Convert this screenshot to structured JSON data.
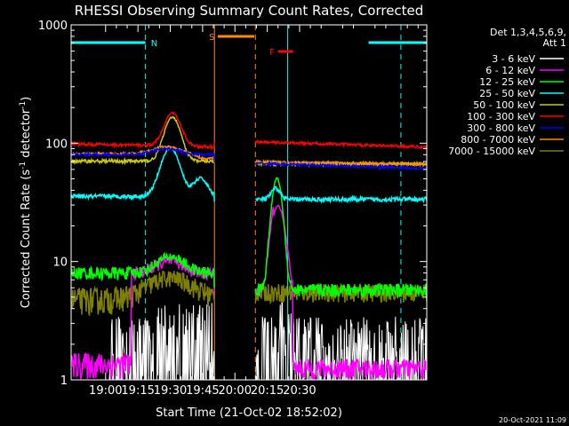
{
  "chart_data": {
    "type": "line",
    "title": "RHESSI Observing Summary Count Rates, Corrected",
    "xlabel": "Start Time (21-Oct-02 18:52:02)",
    "ylabel_main": "Corrected Count Rate (s",
    "ylabel_sup1": "-1",
    "ylabel_mid": " detector",
    "ylabel_sup2": "-1",
    "ylabel_end": ")",
    "ylim": [
      1,
      1000
    ],
    "y_scale": "log",
    "xlim_min": [
      -8,
      157
    ],
    "x_ticks": [
      {
        "label": "19:00",
        "min": 8
      },
      {
        "label": "19:15",
        "min": 23
      },
      {
        "label": "19:30",
        "min": 38
      },
      {
        "label": "19:45",
        "min": 53
      },
      {
        "label": "20:00",
        "min": 68
      },
      {
        "label": "20:15",
        "min": 83
      },
      {
        "label": "20:30",
        "min": 98
      }
    ],
    "y_ticks": [
      {
        "label": "1",
        "v": 1
      },
      {
        "label": "10",
        "v": 10
      },
      {
        "label": "100",
        "v": 100
      },
      {
        "label": "1000",
        "v": 1000
      }
    ],
    "legend": {
      "placement": "right",
      "header": [
        "Det 1,3,4,5,6,9,",
        "Att 1"
      ],
      "entries": [
        {
          "label": "3 - 6 keV",
          "color": "#ffffff"
        },
        {
          "label": "6 - 12 keV",
          "color": "#ff00ff"
        },
        {
          "label": "12 - 25 keV",
          "color": "#00ff00"
        },
        {
          "label": "25 - 50 keV",
          "color": "#00ffff"
        },
        {
          "label": "50 - 100 keV",
          "color": "#cccc00"
        },
        {
          "label": "100 - 300 keV",
          "color": "#ff0000"
        },
        {
          "label": "300 - 800 keV",
          "color": "#0000ff"
        },
        {
          "label": "800 - 7000 keV",
          "color": "#ff8c00"
        },
        {
          "label": "7000 - 15000 keV",
          "color": "#808000"
        }
      ]
    },
    "flags": [
      {
        "label": "N",
        "color": "#00ffff"
      },
      {
        "label": "S",
        "color": "#ff8c00"
      },
      {
        "label": "F",
        "color": "#ff0000"
      }
    ],
    "timestamp": "20-Oct-2021 11:09"
  }
}
